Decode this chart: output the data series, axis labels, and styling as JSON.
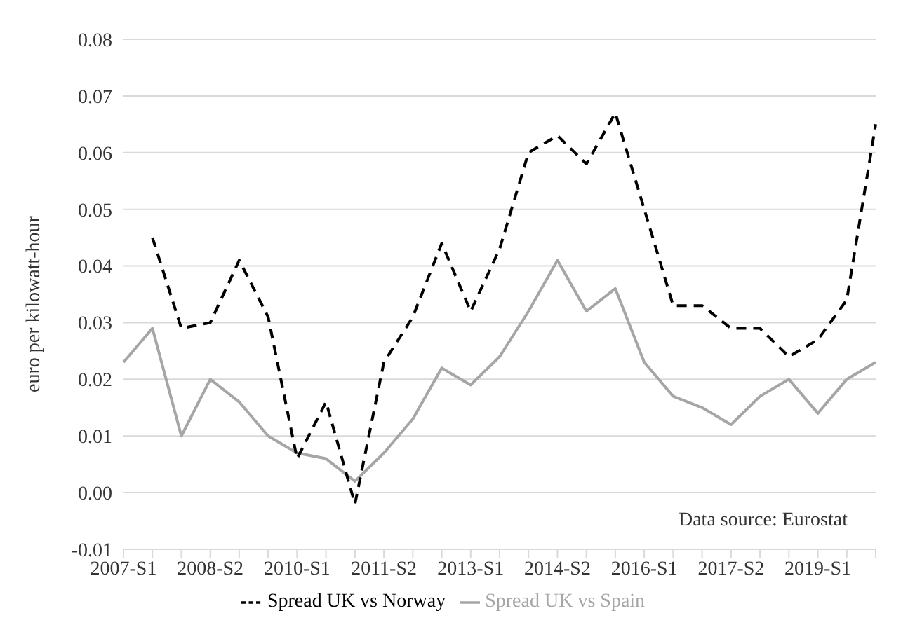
{
  "chart_data": {
    "type": "line",
    "ylabel": "euro per kilowatt-hour",
    "categories": [
      "2007-S1",
      null,
      null,
      "2008-S2",
      null,
      null,
      "2010-S1",
      null,
      null,
      "2011-S2",
      null,
      null,
      "2013-S1",
      null,
      null,
      "2014-S2",
      null,
      null,
      "2016-S1",
      null,
      null,
      "2017-S2",
      null,
      null,
      "2019-S1",
      null,
      null
    ],
    "series": [
      {
        "name": "Spread UK vs Spain",
        "color": "#a6a6a6",
        "line_style": "solid",
        "values": [
          0.023,
          0.029,
          0.01,
          0.02,
          0.016,
          0.01,
          0.007,
          0.006,
          0.002,
          0.007,
          0.013,
          0.022,
          0.019,
          0.024,
          0.032,
          0.041,
          0.032,
          0.036,
          0.023,
          0.017,
          0.015,
          0.012,
          0.017,
          0.02,
          0.014,
          0.02,
          0.023
        ]
      },
      {
        "name": "Spread UK vs Norway",
        "color": "#000000",
        "line_style": "dashed",
        "values": [
          null,
          0.045,
          0.029,
          0.03,
          0.041,
          0.031,
          0.006,
          0.016,
          -0.002,
          0.023,
          0.031,
          0.044,
          0.032,
          0.043,
          0.06,
          0.063,
          0.058,
          0.067,
          0.05,
          0.033,
          0.033,
          0.029,
          0.029,
          0.024,
          0.027,
          0.034,
          0.065
        ]
      }
    ],
    "ylim": [
      -0.01,
      0.08
    ],
    "yticks": [
      {
        "value": -0.01,
        "label": "-0.01"
      },
      {
        "value": 0,
        "label": "0.00"
      },
      {
        "value": 0.01,
        "label": "0.01"
      },
      {
        "value": 0.02,
        "label": "0.02"
      },
      {
        "value": 0.03,
        "label": "0.03"
      },
      {
        "value": 0.04,
        "label": "0.04"
      },
      {
        "value": 0.05,
        "label": "0.05"
      },
      {
        "value": 0.06,
        "label": "0.06"
      },
      {
        "value": 0.07,
        "label": "0.07"
      },
      {
        "value": 0.08,
        "label": "0.08"
      }
    ],
    "grid": "y",
    "legend": "bottom",
    "marker": "none",
    "annotations": [
      "Data source: Eurostat"
    ]
  }
}
